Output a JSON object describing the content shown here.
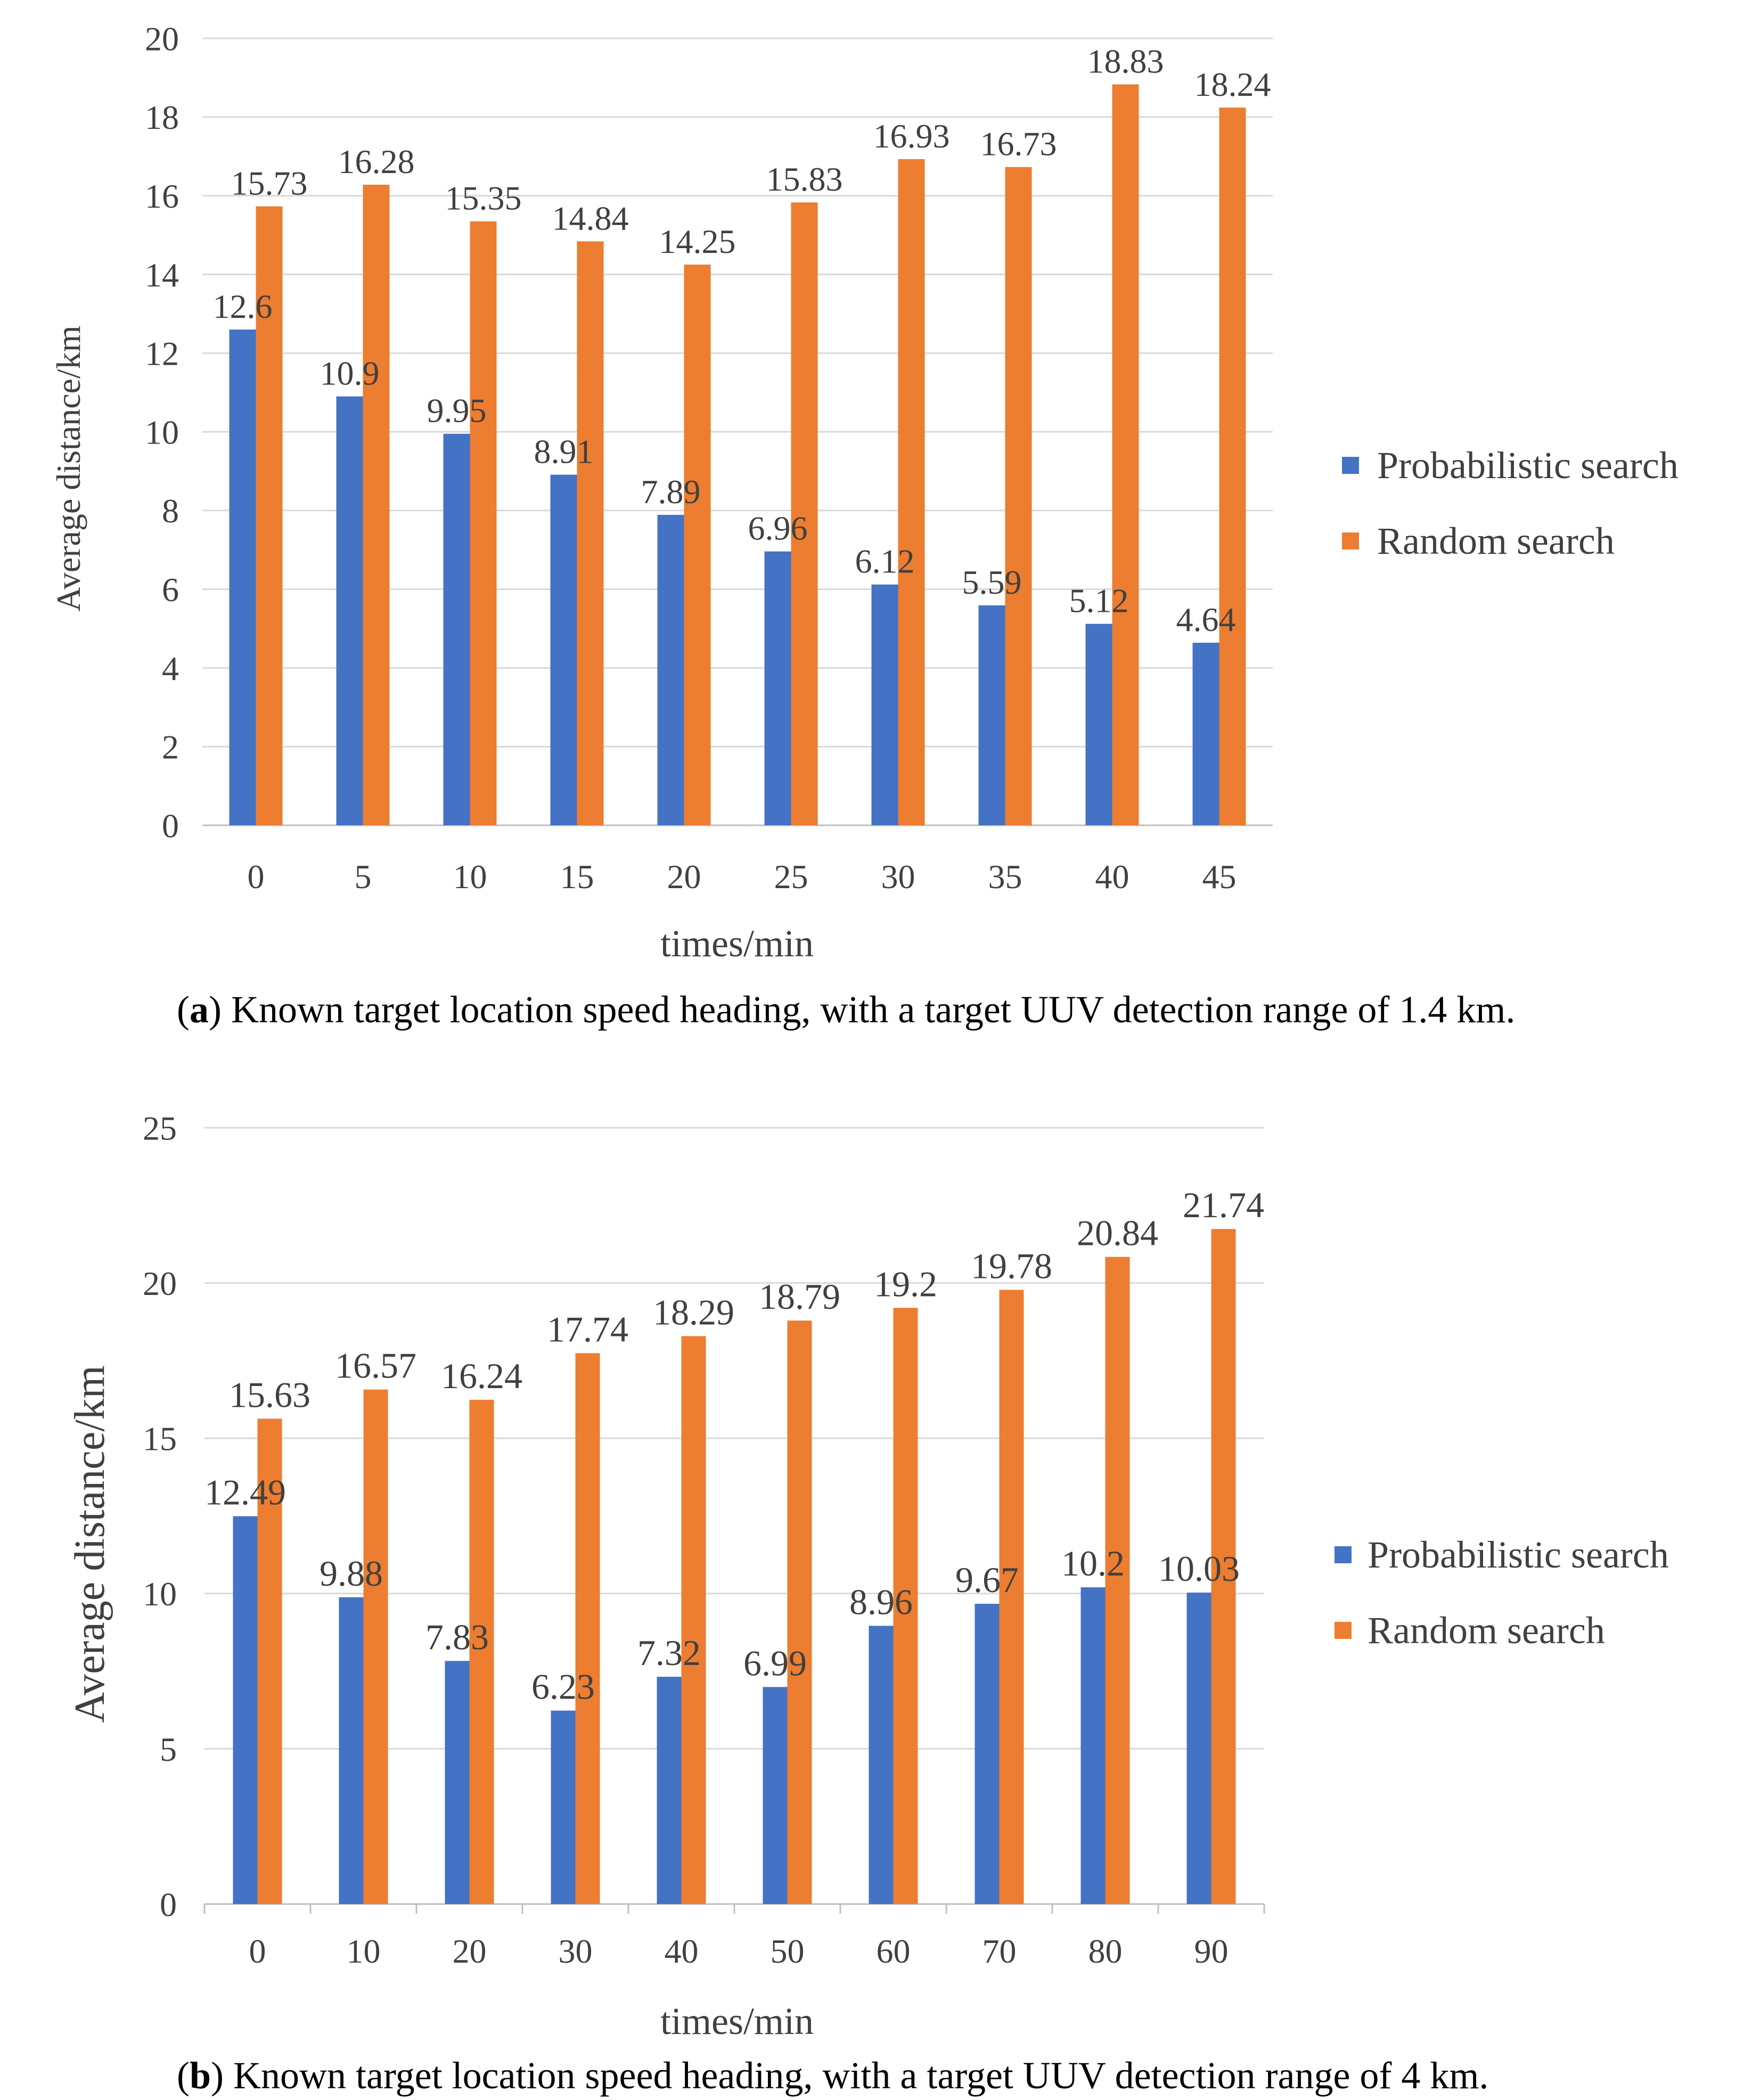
{
  "chart_data": [
    {
      "type": "bar",
      "caption_label": "a",
      "caption_text": ") Known target location speed heading, with a target UUV detection range of 1.4 km.",
      "caption_open": "(",
      "xlabel": "times/min",
      "ylabel": "Average distance/km",
      "ylim": [
        0,
        20
      ],
      "ytick_step": 2,
      "categories": [
        "0",
        "5",
        "10",
        "15",
        "20",
        "25",
        "30",
        "35",
        "40",
        "45"
      ],
      "grid": true,
      "legend": "right",
      "series": [
        {
          "name": "Probabilistic search",
          "color": "#4472C4",
          "values": [
            12.6,
            10.9,
            9.95,
            8.91,
            7.89,
            6.96,
            6.12,
            5.59,
            5.12,
            4.64
          ],
          "labels": [
            "12.6",
            "10.9",
            "9.95",
            "8.91",
            "7.89",
            "6.96",
            "6.12",
            "5.59",
            "5.12",
            "4.64"
          ]
        },
        {
          "name": "Random search",
          "color": "#ED7D31",
          "values": [
            15.73,
            16.28,
            15.35,
            14.84,
            14.25,
            15.83,
            16.93,
            16.73,
            18.83,
            18.24
          ],
          "labels": [
            "15.73",
            "16.28",
            "15.35",
            "14.84",
            "14.25",
            "15.83",
            "16.93",
            "16.73",
            "18.83",
            "18.24"
          ]
        }
      ]
    },
    {
      "type": "bar",
      "caption_label": "b",
      "caption_text": ") Known target location speed heading, with a target UUV detection range of 4 km.",
      "caption_open": "(",
      "xlabel": "times/min",
      "ylabel": "Average distance/km",
      "ylim": [
        0,
        25
      ],
      "ytick_step": 5,
      "categories": [
        "0",
        "10",
        "20",
        "30",
        "40",
        "50",
        "60",
        "70",
        "80",
        "90"
      ],
      "grid": true,
      "legend": "right",
      "series": [
        {
          "name": "Probabilistic search",
          "color": "#4472C4",
          "values": [
            12.49,
            9.88,
            7.83,
            6.23,
            7.32,
            6.99,
            8.96,
            9.67,
            10.2,
            10.03
          ],
          "labels": [
            "12.49",
            "9.88",
            "7.83",
            "6.23",
            "7.32",
            "6.99",
            "8.96",
            "9.67",
            "10.2",
            "10.03"
          ]
        },
        {
          "name": "Random search",
          "color": "#ED7D31",
          "values": [
            15.63,
            16.57,
            16.24,
            17.74,
            18.29,
            18.79,
            19.2,
            19.78,
            20.84,
            21.74
          ],
          "labels": [
            "15.63",
            "16.57",
            "16.24",
            "17.74",
            "18.29",
            "18.79",
            "19.2",
            "19.78",
            "20.84",
            "21.74"
          ]
        }
      ]
    }
  ]
}
